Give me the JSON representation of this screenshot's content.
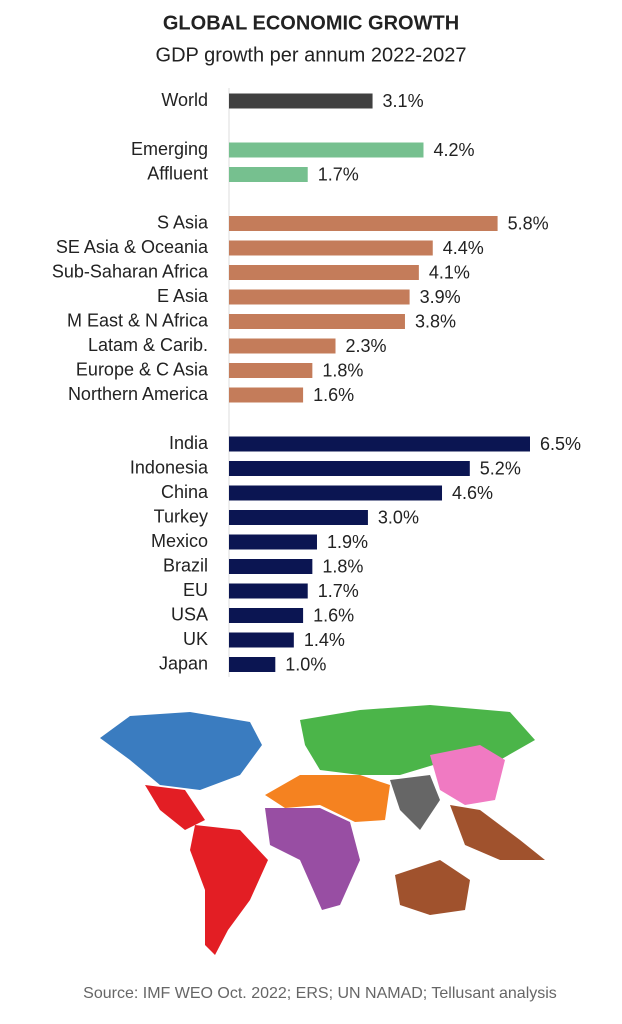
{
  "chart_data": {
    "type": "bar",
    "orientation": "horizontal",
    "title": "GLOBAL ECONOMIC GROWTH",
    "subtitle": "GDP growth per annum 2022-2027",
    "source": "Source: IMF WEO Oct. 2022; ERS; UN NAMAD; Tellusant analysis",
    "categories": [
      "World",
      null,
      "Emerging",
      "Affluent",
      null,
      "S Asia",
      "SE Asia & Oceania",
      "Sub-Saharan Africa",
      "E Asia",
      "M East & N Africa",
      "Latam & Carib.",
      "Europe & C Asia",
      "Northern America",
      null,
      "India",
      "Indonesia",
      "China",
      "Turkey",
      "Mexico",
      "Brazil",
      "EU",
      "USA",
      "UK",
      "Japan"
    ],
    "values": [
      3.1,
      null,
      4.2,
      1.7,
      null,
      5.8,
      4.4,
      4.1,
      3.9,
      3.8,
      2.3,
      1.8,
      1.6,
      null,
      6.5,
      5.2,
      4.6,
      3.0,
      1.9,
      1.8,
      1.7,
      1.6,
      1.4,
      1.0
    ],
    "value_labels": [
      "3.1%",
      null,
      "4.2%",
      "1.7%",
      null,
      "5.8%",
      "4.4%",
      "4.1%",
      "3.9%",
      "3.8%",
      "2.3%",
      "1.8%",
      "1.6%",
      null,
      "6.5%",
      "5.2%",
      "4.6%",
      "3.0%",
      "1.9%",
      "1.8%",
      "1.7%",
      "1.6%",
      "1.4%",
      "1.0%"
    ],
    "colors": [
      "#404040",
      null,
      "#76c08f",
      "#76c08f",
      null,
      "#c47c5a",
      "#c47c5a",
      "#c47c5a",
      "#c47c5a",
      "#c47c5a",
      "#c47c5a",
      "#c47c5a",
      "#c47c5a",
      null,
      "#0b1552",
      "#0b1552",
      "#0b1552",
      "#0b1552",
      "#0b1552",
      "#0b1552",
      "#0b1552",
      "#0b1552",
      "#0b1552",
      "#0b1552"
    ]
  }
}
